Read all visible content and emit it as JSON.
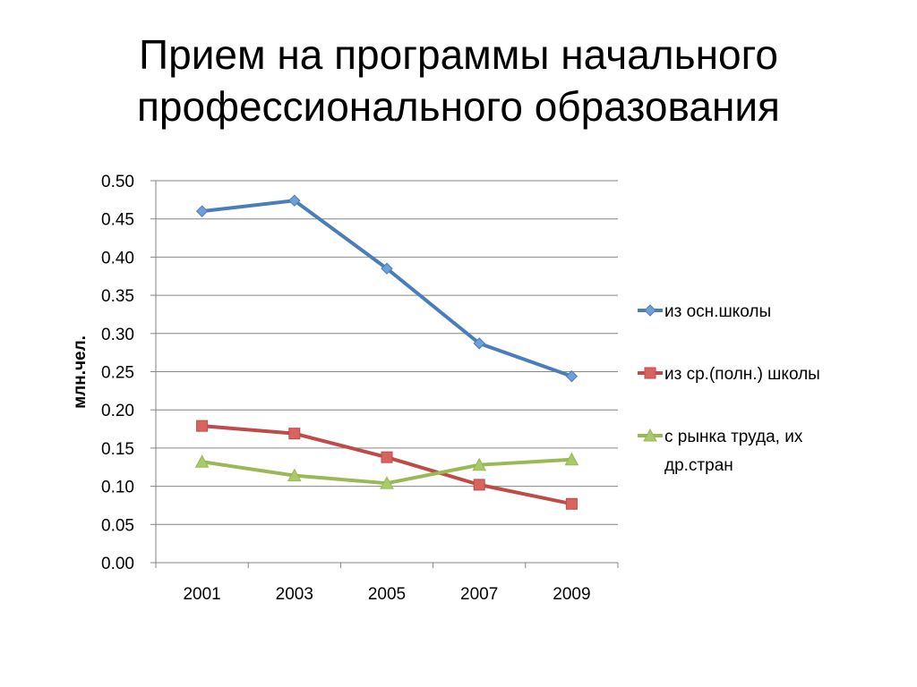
{
  "slide": {
    "title_lines": [
      "Прием на программы начального",
      "профессионального образования"
    ]
  },
  "chart_data": {
    "type": "line",
    "title": "Прием на программы начального профессионального образования",
    "xlabel": "",
    "ylabel": "млн.чел.",
    "categories": [
      "2001",
      "2003",
      "2005",
      "2007",
      "2009"
    ],
    "ylim": [
      0,
      0.5
    ],
    "yticks": [
      "0.00",
      "0.05",
      "0.10",
      "0.15",
      "0.20",
      "0.25",
      "0.30",
      "0.35",
      "0.40",
      "0.45",
      "0.50"
    ],
    "grid": true,
    "legend_position": "right",
    "series": [
      {
        "name": "из осн.школы",
        "values": [
          0.46,
          0.474,
          0.385,
          0.287,
          0.244
        ],
        "color": "#4A7EBB",
        "marker": "diamond",
        "marker_fill": "#6E9FD8",
        "legend_lines": [
          "из осн.школы"
        ]
      },
      {
        "name": "из ср.(полн.) школы",
        "values": [
          0.179,
          0.169,
          0.138,
          0.102,
          0.077
        ],
        "color": "#BE4B48",
        "marker": "square",
        "marker_fill": "#D8635F",
        "legend_lines": [
          "из ср.(полн.) школы"
        ]
      },
      {
        "name": "с рынка труда, их др.стран",
        "values": [
          0.132,
          0.114,
          0.104,
          0.128,
          0.135
        ],
        "color": "#98B954",
        "marker": "triangle",
        "marker_fill": "#A9C96A",
        "legend_lines": [
          "с рынка труда, их",
          "др.стран"
        ]
      }
    ]
  }
}
